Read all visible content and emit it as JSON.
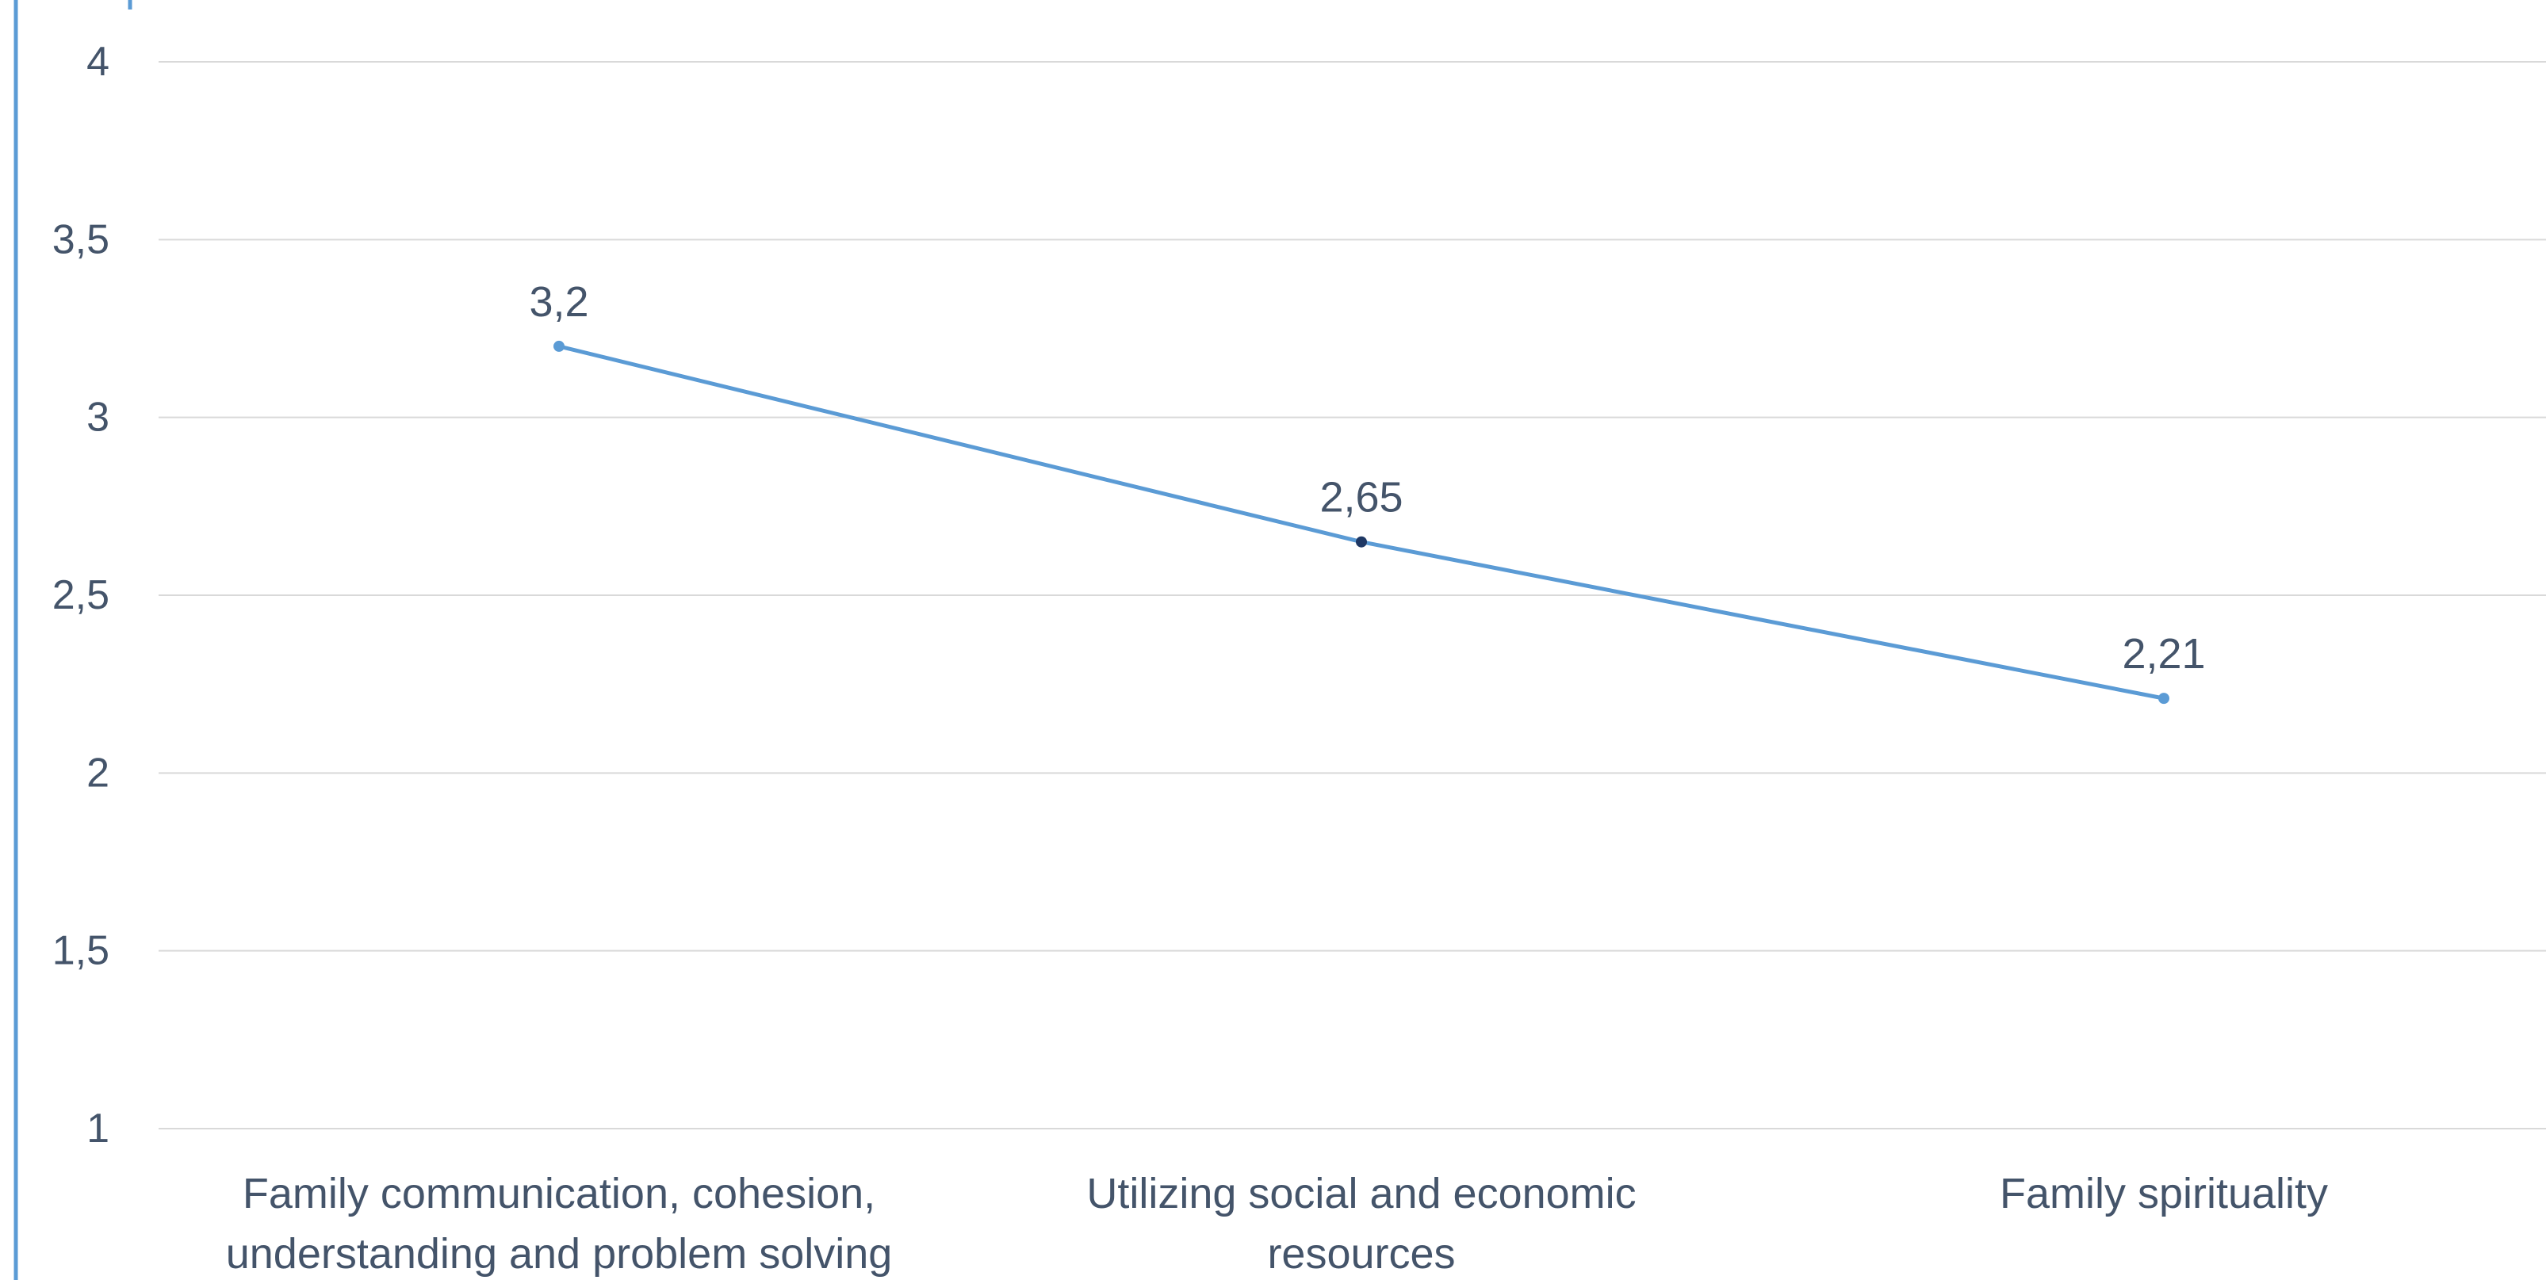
{
  "chart_data": {
    "type": "line",
    "title": "",
    "xlabel": "",
    "ylabel": "",
    "ylim": [
      1,
      4
    ],
    "y_ticks": [
      "1",
      "1,5",
      "2",
      "2,5",
      "3",
      "3,5",
      "4"
    ],
    "y_tick_values": [
      1,
      1.5,
      2,
      2.5,
      3,
      3.5,
      4
    ],
    "categories": [
      [
        "Family communication, cohesion,",
        "understanding and problem solving"
      ],
      [
        "Utilizing social and economic",
        "resources"
      ],
      [
        "Family spirituality"
      ]
    ],
    "series": [
      {
        "values": [
          3.2,
          2.65,
          2.21
        ],
        "data_labels": [
          "3,2",
          "2,65",
          "2,21"
        ],
        "color": "#5b9bd5",
        "marker_colors": [
          "#5b9bd5",
          "#1f3864",
          "#5b9bd5"
        ]
      }
    ],
    "grid": true,
    "legend": "none",
    "colors": {
      "gridline": "#d9d9d9",
      "text": "#44546a",
      "frame": "#5b9bd5"
    }
  }
}
